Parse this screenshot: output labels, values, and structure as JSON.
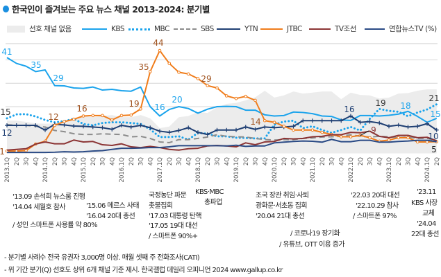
{
  "title": "한국인이 즐겨보는 주요 뉴스 채널 2013-2024: 분기별",
  "legend": [
    {
      "name": "선호 채널 없음",
      "style": "area",
      "color": "#ececec"
    },
    {
      "name": "KBS",
      "style": "solid",
      "color": "#1aa3ec"
    },
    {
      "name": "MBC",
      "style": "dotted",
      "color": "#1aa3ec"
    },
    {
      "name": "SBS",
      "style": "dashed",
      "color": "#8c8c8c"
    },
    {
      "name": "YTN",
      "style": "solid-plus",
      "color": "#1f3f73"
    },
    {
      "name": "JTBC",
      "style": "solid-circle",
      "color": "#f07c1a"
    },
    {
      "name": "TV조선",
      "style": "solid",
      "color": "#8b3434"
    },
    {
      "name": "연합뉴스TV (%)",
      "style": "solid",
      "color": "#2a4a85"
    }
  ],
  "chart_data": {
    "type": "line",
    "title": "한국인이 즐겨보는 주요 뉴스 채널 2013-2024: 분기별",
    "ylabel": "%",
    "ylim": [
      0,
      50
    ],
    "grid": true,
    "legend_position": "top",
    "categories": [
      "2013.1Q",
      "2Q",
      "3Q",
      "4Q",
      "2014.1Q",
      "2Q",
      "3Q",
      "4Q",
      "2015.1Q",
      "2Q",
      "3Q",
      "4Q",
      "2016.1Q",
      "2Q",
      "3Q",
      "4Q",
      "2017.1Q",
      "2Q",
      "3Q",
      "4Q",
      "2018.1Q",
      "2Q",
      "3Q",
      "4Q",
      "2019.1Q",
      "2Q",
      "3Q",
      "4Q",
      "2020.1Q",
      "2Q",
      "3Q",
      "4Q",
      "2021.1Q",
      "2Q",
      "3Q",
      "4Q",
      "2022.1Q",
      "2Q",
      "3Q",
      "4Q",
      "2023.1Q",
      "2Q",
      "3Q",
      "4Q",
      "2024.1Q",
      "2Q"
    ],
    "series": [
      {
        "name": "선호 채널 없음",
        "type": "area",
        "values": [
          14,
          14,
          13.5,
          12.8,
          12.7,
          12.8,
          14,
          14,
          16,
          15.5,
          16,
          16.4,
          15.5,
          15.5,
          16.4,
          15,
          10.8,
          11.5,
          15.5,
          16,
          17.7,
          17.3,
          19.7,
          21.2,
          21.6,
          22.7,
          24,
          26.8,
          23.9,
          24.8,
          26.5,
          25.6,
          26,
          26.5,
          26.5,
          23.2,
          26,
          25,
          24.8,
          23.5,
          23.9,
          25.6,
          25.8,
          26.8,
          27.4,
          27.4
        ]
      },
      {
        "name": "KBS",
        "values": [
          41,
          38.5,
          37.3,
          35,
          35.7,
          29,
          28.9,
          28,
          27.8,
          28.4,
          27.1,
          27.4,
          26.8,
          26.6,
          28.4,
          20,
          16,
          18.8,
          20,
          19.2,
          17.2,
          18.9,
          20,
          20.1,
          20,
          18.5,
          18.5,
          16.5,
          16,
          16.2,
          17.7,
          17.5,
          17,
          16,
          15.8,
          14.3,
          14.1,
          16.2,
          16.2,
          16,
          16.3,
          16.8,
          18,
          15.8,
          13.3,
          15
        ]
      },
      {
        "name": "MBC",
        "values": [
          15,
          16.7,
          16.8,
          15.8,
          14.3,
          13.3,
          13.8,
          14.8,
          12.6,
          12,
          13,
          13.3,
          13.3,
          13,
          12.6,
          10.3,
          7,
          7,
          7.3,
          5.9,
          8.8,
          8.4,
          7.3,
          7.3,
          6.7,
          6.6,
          6.4,
          6.4,
          12.3,
          13.6,
          14,
          10.8,
          11.6,
          10,
          8.8,
          10,
          11.3,
          9.8,
          14.8,
          19,
          18.2,
          17.8,
          15.9,
          17.5,
          18.8,
          21
        ]
      },
      {
        "name": "SBS",
        "values": [
          12.3,
          12,
          12,
          11.6,
          11.3,
          9.8,
          9.3,
          8.4,
          8.1,
          8.1,
          8.4,
          8.2,
          8.1,
          7.1,
          7.3,
          6.4,
          4.9,
          4.6,
          5.9,
          5.9,
          6.4,
          7,
          8,
          7.3,
          7.1,
          7,
          6.4,
          5.9,
          5.7,
          5.9,
          5.9,
          6.4,
          6.6,
          7,
          7.1,
          7.3,
          8,
          7.3,
          7,
          7.3,
          7.1,
          6.7,
          7,
          6.4,
          6.4,
          5.4
        ]
      },
      {
        "name": "YTN",
        "values": [
          12,
          12,
          12,
          12,
          10,
          12.4,
          12.2,
          11.7,
          11.6,
          11.3,
          11,
          10.3,
          12,
          11.3,
          12,
          11,
          9.5,
          9,
          9.8,
          11,
          9,
          8.1,
          10,
          10,
          10,
          11.3,
          10.3,
          11.3,
          11,
          11.3,
          11.6,
          14,
          14,
          14,
          14,
          14,
          16,
          13.3,
          13.6,
          13,
          11.6,
          12.1,
          11.3,
          11.6,
          12.7,
          10
        ]
      },
      {
        "name": "JTBC",
        "values": [
          1,
          1,
          1.2,
          4,
          5.2,
          12,
          13.6,
          14.6,
          16,
          16.2,
          16.2,
          14.3,
          16.2,
          16.4,
          19,
          35,
          44,
          38.5,
          34.7,
          34,
          32,
          29,
          28,
          24.6,
          23.5,
          24.4,
          22.7,
          14,
          13.3,
          11.6,
          10,
          10,
          10,
          9,
          8.1,
          7.1,
          7.1,
          7.7,
          6.7,
          5.2,
          5.7,
          6.7,
          6.7,
          4.9,
          4.9,
          5
        ]
      },
      {
        "name": "TV조선",
        "values": [
          1.4,
          1.7,
          2,
          4,
          4.9,
          4.1,
          4.1,
          5.7,
          4.9,
          5.1,
          3.7,
          3.4,
          4.1,
          2.8,
          2.5,
          3,
          2.5,
          1.7,
          1.4,
          2,
          2.2,
          3.2,
          3.4,
          3.2,
          2.8,
          4.5,
          3.7,
          4.9,
          5.1,
          6.4,
          6.2,
          6.4,
          7.1,
          7.3,
          8,
          8,
          9,
          8.8,
          9.5,
          7.3,
          6.7,
          7.7,
          7.7,
          6.7,
          6.9,
          5.4
        ]
      },
      {
        "name": "연합뉴스TV",
        "values": [
          0.4,
          0.4,
          0.4,
          0.4,
          0.4,
          0.5,
          0.7,
          0.6,
          0.7,
          1,
          1.2,
          1.7,
          2.2,
          2.2,
          2.3,
          2.5,
          2.5,
          2.8,
          3.3,
          3.3,
          3.3,
          3.3,
          3.3,
          3.2,
          3.5,
          3,
          3.2,
          3.2,
          4.5,
          4.8,
          5.1,
          5.3,
          5.2,
          4.8,
          6,
          5,
          5,
          5.6,
          5.6,
          4.8,
          4.8,
          5.1,
          5.3,
          5.6,
          5.6,
          5
        ]
      }
    ],
    "data_labels": [
      {
        "series": "KBS",
        "text": "41"
      },
      {
        "series": "KBS",
        "text": "35"
      },
      {
        "series": "KBS",
        "text": "29"
      },
      {
        "series": "KBS",
        "text": "16"
      },
      {
        "series": "KBS",
        "text": "20"
      },
      {
        "series": "KBS",
        "text": "18"
      },
      {
        "series": "KBS",
        "text": "15"
      },
      {
        "series": "MBC",
        "text": "15"
      },
      {
        "series": "MBC",
        "text": "19"
      },
      {
        "series": "MBC",
        "text": "21"
      },
      {
        "series": "JTBC",
        "text": "1"
      },
      {
        "series": "JTBC",
        "text": "12"
      },
      {
        "series": "JTBC",
        "text": "16"
      },
      {
        "series": "JTBC",
        "text": "19"
      },
      {
        "series": "JTBC",
        "text": "35"
      },
      {
        "series": "JTBC",
        "text": "44"
      },
      {
        "series": "JTBC",
        "text": "29"
      },
      {
        "series": "JTBC",
        "text": "14"
      },
      {
        "series": "YTN",
        "text": "12"
      },
      {
        "series": "YTN",
        "text": "16"
      },
      {
        "series": "YTN",
        "text": "10"
      },
      {
        "series": "TV조선",
        "text": "9"
      },
      {
        "series": "연합뉴스TV",
        "text": "5"
      }
    ],
    "label_colors": {
      "KBS": "#1aa3ec",
      "MBC": "#333333",
      "JTBC": "#a0521e",
      "YTN": "#1f3f73",
      "TV조선": "#8b3434",
      "연합뉴스TV": "#222222"
    }
  },
  "annotations": [
    "'13.09 손석희 뉴스룸 진행",
    "'14.04 세월호 참사",
    "/ 성인 스마트폰 사용률 약 80%",
    "'15.06 메르스 사태",
    "'16.04 20대 총선",
    "국정농단 파문",
    "촛불집회",
    "'17.03 대통령 탄핵",
    "'17.05 19대 대선",
    "/ 스마트폰 90%+",
    "KBS·MBC",
    "총파업",
    "조국 장관 취임·사퇴",
    "광화문·서초동 집회",
    "'20.04 21대 총선",
    "/ 코로나19 장기화",
    "/ 유튜브, OTT 이용 증가",
    "'22.03 20대 대선",
    "'22.10.29 참사",
    "/ 스마트폰 97%",
    "'23.11",
    "KBS 사장",
    "교체",
    "'24.04",
    "22대 총선"
  ],
  "footnotes": [
    "- 분기별 사례수 전국 유권자 3,000명 이상. 매월 셋째 주 전화조사(CATI)",
    "- 위 기간 분기(Q) 선호도 상위 6개 채널 기준 제시. 한국갤럽 데일리 오피니언 2024 www.gallup.co.kr"
  ]
}
